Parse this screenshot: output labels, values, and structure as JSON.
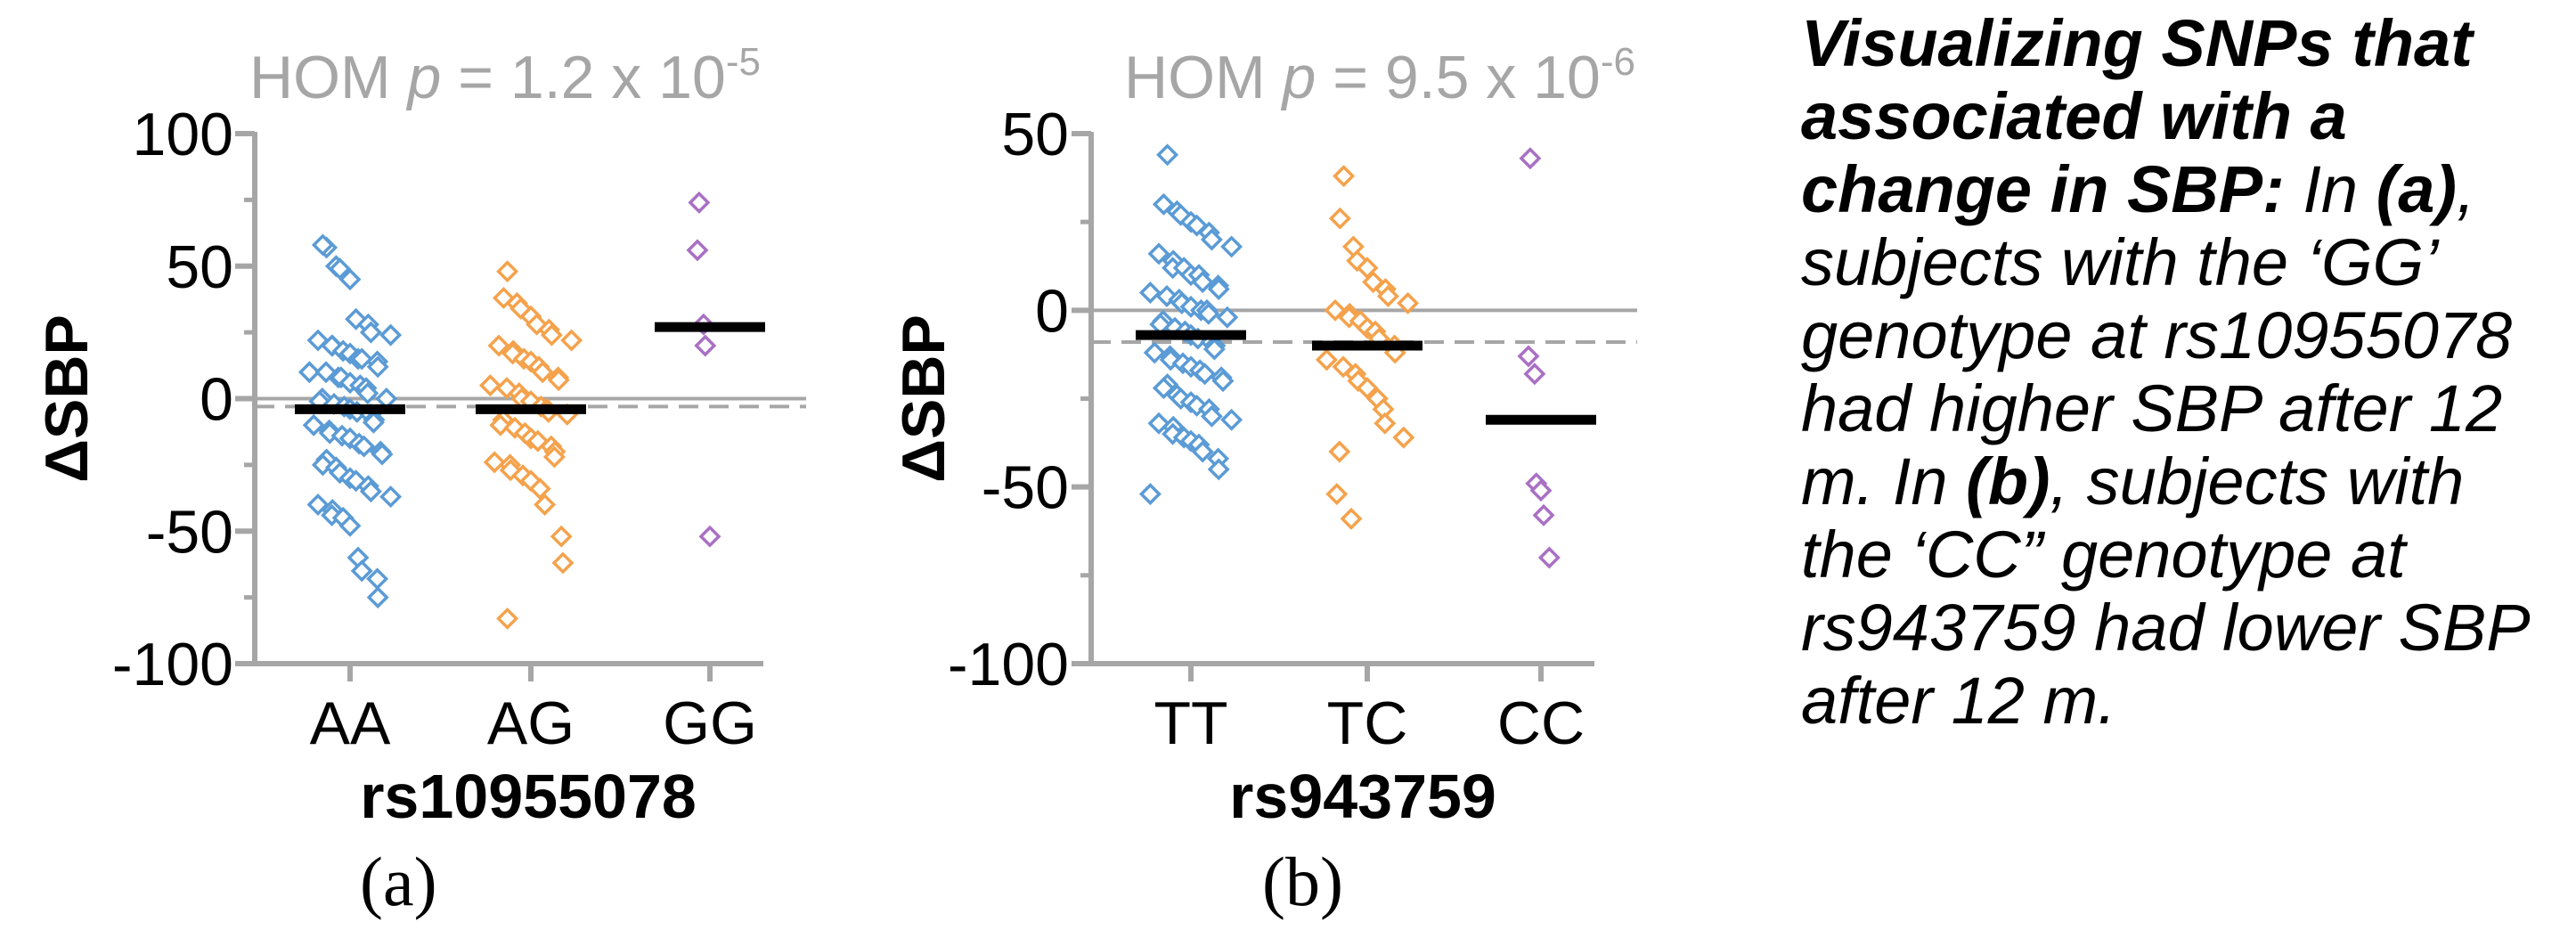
{
  "chart_data": [
    {
      "type": "scatter",
      "panel_label": "(a)",
      "annotation": {
        "prefix": "HOM ",
        "p_symbol": "p",
        "value_text": " = 1.2 x 10",
        "exponent": "-5"
      },
      "xlabel": "rs10955078",
      "ylabel": "ΔSBP",
      "ylim": [
        -100,
        100
      ],
      "yticks": [
        100,
        50,
        0,
        -50,
        -100
      ],
      "zero_line": 0,
      "reference_line": -3,
      "categories": [
        "AA",
        "AG",
        "GG"
      ],
      "colors": [
        "#5b9bd5",
        "#f4a24c",
        "#a970c3"
      ],
      "means": [
        -4,
        -4,
        27
      ],
      "points": [
        [
          57,
          58,
          50,
          49,
          45,
          30,
          28,
          25,
          24,
          22,
          20,
          20,
          18,
          17,
          15,
          15,
          14,
          12,
          10,
          10,
          8,
          8,
          6,
          5,
          4,
          2,
          0,
          0,
          -1,
          -2,
          -3,
          -4,
          -5,
          -6,
          -8,
          -9,
          -10,
          -12,
          -13,
          -14,
          -15,
          -17,
          -18,
          -20,
          -21,
          -23,
          -25,
          -26,
          -28,
          -30,
          -31,
          -33,
          -35,
          -37,
          -40,
          -42,
          -44,
          -45,
          -48,
          -60,
          -65,
          -68,
          -75
        ],
        [
          48,
          38,
          36,
          34,
          31,
          28,
          26,
          24,
          22,
          20,
          18,
          17,
          15,
          14,
          12,
          10,
          8,
          7,
          5,
          4,
          2,
          0,
          -1,
          -3,
          -4,
          -5,
          -6,
          -8,
          -10,
          -11,
          -13,
          -15,
          -16,
          -18,
          -20,
          -22,
          -24,
          -25,
          -27,
          -29,
          -31,
          -34,
          -40,
          -52,
          -62,
          -83
        ],
        [
          74,
          56,
          28,
          20,
          -52
        ]
      ]
    },
    {
      "type": "scatter",
      "panel_label": "(b)",
      "annotation": {
        "prefix": "HOM ",
        "p_symbol": "p",
        "value_text": " = 9.5 x 10",
        "exponent": "-6"
      },
      "xlabel": "rs943759",
      "ylabel": "ΔSBP",
      "ylim": [
        -100,
        50
      ],
      "yticks": [
        50,
        0,
        -50,
        -100
      ],
      "zero_line": 0,
      "reference_line": -9,
      "categories": [
        "TT",
        "TC",
        "CC"
      ],
      "colors": [
        "#5b9bd5",
        "#f4a24c",
        "#a970c3"
      ],
      "means": [
        -7,
        -10,
        -31
      ],
      "points": [
        [
          44,
          30,
          28,
          27,
          25,
          24,
          22,
          20,
          18,
          16,
          14,
          12,
          12,
          10,
          10,
          8,
          7,
          6,
          5,
          4,
          3,
          2,
          1,
          0,
          0,
          -1,
          -2,
          -3,
          -4,
          -5,
          -6,
          -7,
          -8,
          -9,
          -10,
          -11,
          -12,
          -13,
          -14,
          -15,
          -16,
          -17,
          -18,
          -19,
          -20,
          -21,
          -22,
          -24,
          -25,
          -26,
          -27,
          -28,
          -30,
          -31,
          -32,
          -33,
          -35,
          -36,
          -37,
          -38,
          -40,
          -42,
          -45,
          -52
        ],
        [
          38,
          26,
          18,
          14,
          12,
          8,
          6,
          4,
          2,
          0,
          -1,
          -2,
          -3,
          -5,
          -6,
          -8,
          -10,
          -12,
          -14,
          -16,
          -18,
          -20,
          -22,
          -25,
          -28,
          -32,
          -36,
          -40,
          -52,
          -59
        ],
        [
          43,
          -13,
          -18,
          -49,
          -51,
          -58,
          -70
        ]
      ]
    }
  ],
  "caption": {
    "heading": "Visualizing SNPs that associated with a change in SBP:",
    "part1": " In ",
    "ref_a": "(a)",
    "part2": ", subjects with the ‘GG’ genotype at rs10955078 had higher SBP after 12 m. In ",
    "ref_b": "(b)",
    "part3": ", subjects with the ‘CC” genotype at rs943759 had lower SBP after 12 m."
  }
}
